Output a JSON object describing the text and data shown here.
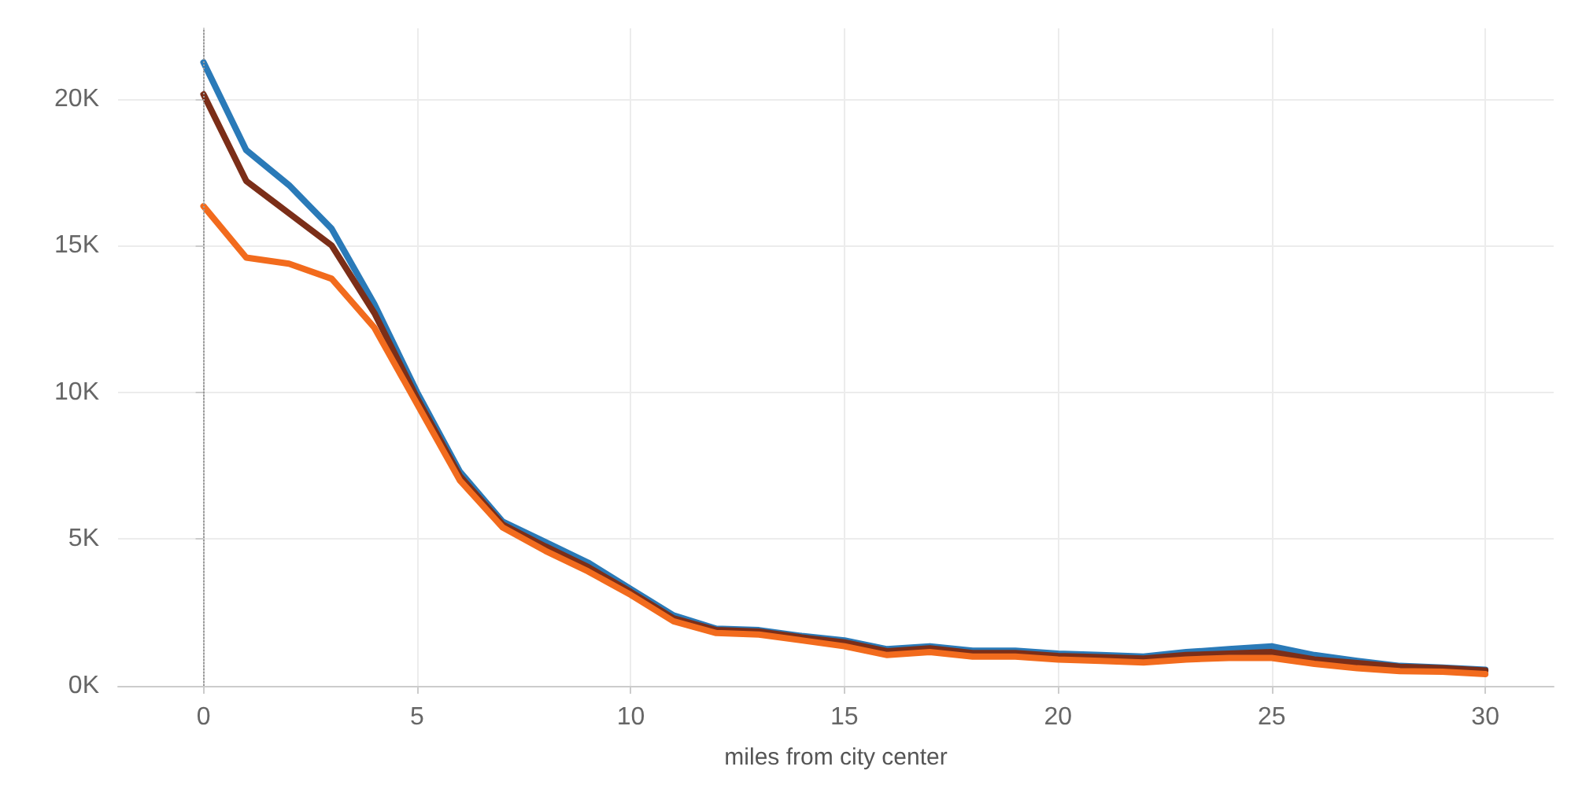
{
  "chart_data": {
    "type": "line",
    "xlabel": "miles from city center",
    "x": [
      0,
      1,
      2,
      3,
      4,
      5,
      6,
      7,
      8,
      9,
      10,
      11,
      12,
      13,
      14,
      15,
      16,
      17,
      18,
      19,
      20,
      21,
      22,
      23,
      24,
      25,
      26,
      27,
      28,
      29,
      30
    ],
    "series": [
      {
        "color": "#2a7ab8",
        "values": [
          21240,
          18250,
          17060,
          15570,
          13000,
          10000,
          7300,
          5600,
          4900,
          4200,
          3300,
          2400,
          1950,
          1900,
          1700,
          1550,
          1250,
          1350,
          1200,
          1200,
          1100,
          1050,
          1000,
          1150,
          1250,
          1350,
          1050,
          850,
          680,
          620,
          550
        ]
      },
      {
        "color": "#7b2e18",
        "values": [
          20150,
          17200,
          16100,
          15000,
          12700,
          9800,
          7150,
          5500,
          4750,
          4050,
          3200,
          2300,
          1900,
          1850,
          1650,
          1480,
          1180,
          1280,
          1120,
          1120,
          1020,
          980,
          930,
          1050,
          1100,
          1150,
          900,
          780,
          650,
          600,
          520
        ]
      },
      {
        "color": "#f26b1d",
        "values": [
          16340,
          14590,
          14380,
          13870,
          12200,
          9600,
          7000,
          5400,
          4600,
          3900,
          3100,
          2200,
          1800,
          1750,
          1550,
          1350,
          1050,
          1150,
          1000,
          1000,
          900,
          850,
          800,
          900,
          950,
          950,
          750,
          600,
          500,
          480,
          400
        ]
      }
    ],
    "xlim": [
      -2,
      31.6
    ],
    "xticks": [
      0,
      5,
      10,
      15,
      20,
      25,
      30
    ],
    "ylim": [
      0,
      22400
    ],
    "yticks": [
      {
        "value": 0,
        "label": "0K"
      },
      {
        "value": 5000,
        "label": "5K"
      },
      {
        "value": 10000,
        "label": "10K"
      },
      {
        "value": 15000,
        "label": "15K"
      },
      {
        "value": 20000,
        "label": "20K"
      }
    ],
    "ref_lines": [
      {
        "axis": "x",
        "value": 0,
        "color": "#999999",
        "line_style": "dotted"
      }
    ],
    "grid": true,
    "marker": "none",
    "line_style": "solid"
  }
}
